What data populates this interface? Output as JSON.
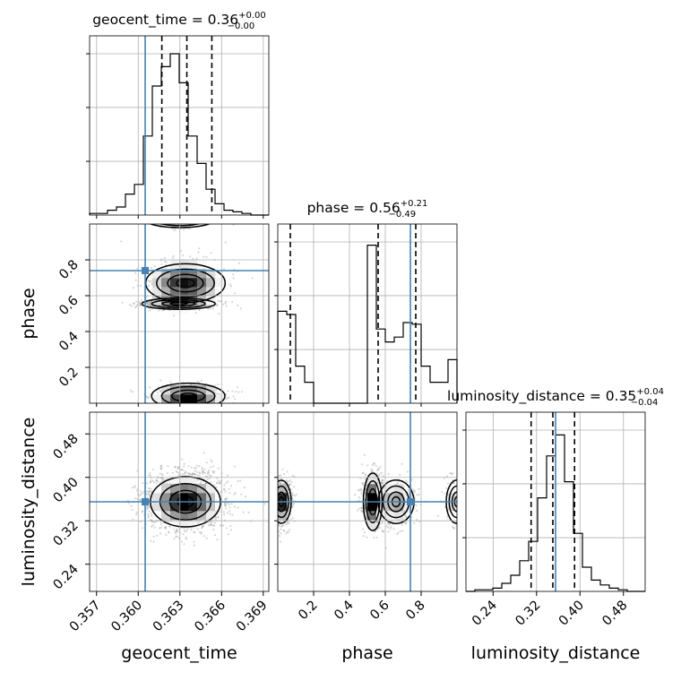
{
  "chart_data": {
    "type": "corner",
    "parameters": [
      "geocent_time",
      "phase",
      "luminosity_distance"
    ],
    "axis_labels": [
      "geocent_time",
      "phase",
      "luminosity_distance"
    ],
    "ranges": {
      "geocent_time": [
        0.3565,
        0.3694
      ],
      "phase": [
        0.0,
        1.0
      ],
      "luminosity_distance": [
        0.19,
        0.52
      ]
    },
    "truths": {
      "geocent_time": 0.3605,
      "phase": 0.74,
      "luminosity_distance": 0.355
    },
    "quantiles": {
      "geocent_time": [
        0.3617,
        0.3635,
        0.3653
      ],
      "phase": [
        0.07,
        0.56,
        0.77
      ],
      "luminosity_distance": [
        0.31,
        0.35,
        0.39
      ]
    },
    "titles": {
      "geocent_time": {
        "text": "geocent_time = 0.36",
        "sup": "+0.00",
        "sub": "−0.00"
      },
      "phase": {
        "text": "phase = 0.56",
        "sup": "+0.21",
        "sub": "−0.49"
      },
      "luminosity_distance": {
        "text": "luminosity_distance = 0.35",
        "sup": "+0.04",
        "sub": "−0.04"
      }
    },
    "ticks": {
      "geocent_time": [
        "0.357",
        "0.360",
        "0.363",
        "0.366",
        "0.369"
      ],
      "phase": [
        "0.2",
        "0.4",
        "0.6",
        "0.8"
      ],
      "luminosity_distance": [
        "0.24",
        "0.32",
        "0.40",
        "0.48"
      ]
    },
    "hist1d": {
      "geocent_time": [
        0.01,
        0.01,
        0.03,
        0.05,
        0.13,
        0.19,
        0.49,
        0.8,
        0.92,
        1.0,
        0.82,
        0.49,
        0.32,
        0.16,
        0.07,
        0.03,
        0.02,
        0.01,
        0.0,
        0.0
      ],
      "phase": [
        0.57,
        0.55,
        0.23,
        0.13,
        0.0,
        0.0,
        0.0,
        0.0,
        0.0,
        0.0,
        0.98,
        0.46,
        0.38,
        0.41,
        0.5,
        0.49,
        0.23,
        0.13,
        0.13,
        0.27
      ],
      "luminosity_distance": [
        0.0,
        0.01,
        0.01,
        0.02,
        0.05,
        0.1,
        0.19,
        0.31,
        0.58,
        0.84,
        0.97,
        0.68,
        0.36,
        0.15,
        0.07,
        0.04,
        0.02,
        0.01,
        0.0,
        0.0
      ]
    },
    "truth_line_color": "#4682b4",
    "grid": true
  }
}
